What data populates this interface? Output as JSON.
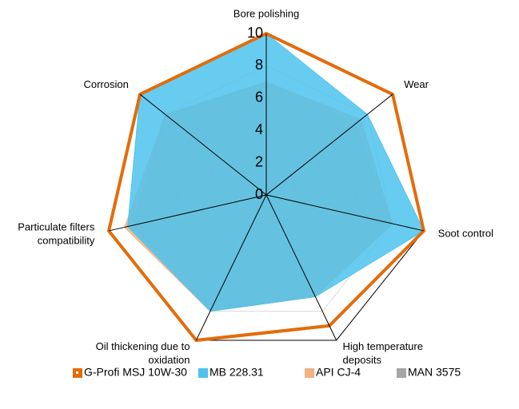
{
  "chart_data": {
    "type": "radar",
    "categories": [
      [
        "Bore polishing"
      ],
      [
        "Wear"
      ],
      [
        "Soot control"
      ],
      [
        "High temperature",
        "deposits"
      ],
      [
        "Oil thickening due to",
        "oxidation"
      ],
      [
        "Particulate filters",
        "compatibility"
      ],
      [
        "Corrosion"
      ]
    ],
    "ylim": [
      0,
      10
    ],
    "yticks": [
      0,
      2,
      4,
      6,
      8,
      10
    ],
    "series": [
      {
        "name": "MAN 3575",
        "color": "#a5a5a5",
        "fill": true,
        "values": [
          7,
          7,
          8,
          7,
          8,
          8.5,
          8
        ]
      },
      {
        "name": "API CJ-4",
        "color": "#f4b183",
        "fill": true,
        "values": [
          7,
          7.5,
          8,
          7,
          8,
          9,
          8
        ]
      },
      {
        "name": "MB 228.31",
        "color": "#4dc3ef",
        "fill": true,
        "values": [
          10,
          8,
          10,
          7,
          8,
          8.8,
          10
        ]
      },
      {
        "name": "G-Profi MSJ 10W-30",
        "color": "#e36c0a",
        "fill": false,
        "values": [
          10,
          10,
          10,
          9,
          10,
          10,
          10
        ]
      }
    ],
    "legend_order": [
      3,
      2,
      1,
      0
    ]
  }
}
